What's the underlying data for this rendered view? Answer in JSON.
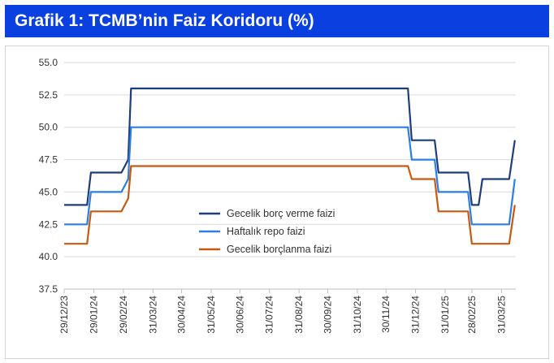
{
  "header": {
    "title": "Grafik 1: TCMB’nin Faiz Koridoru (%)"
  },
  "colors": {
    "header_bg": "#0a3fe0",
    "gridline": "#d9d9d9"
  },
  "chart_data": {
    "type": "line",
    "title": "Grafik 1: TCMB’nin Faiz Koridoru (%)",
    "xlabel": "",
    "ylabel": "",
    "ylim": [
      37.5,
      55.0
    ],
    "y_ticks": [
      37.5,
      40.0,
      42.5,
      45.0,
      47.5,
      50.0,
      52.5,
      55.0
    ],
    "y_tick_labels": [
      "37.5",
      "40.0",
      "42.5",
      "45.0",
      "47.5",
      "50.0",
      "52.5",
      "55.0"
    ],
    "x_range": [
      "2023-12-29",
      "2025-04-15"
    ],
    "x_ticks": [
      "2023-12-29",
      "2024-01-29",
      "2024-02-29",
      "2024-03-31",
      "2024-04-30",
      "2024-05-31",
      "2024-06-30",
      "2024-07-31",
      "2024-08-31",
      "2024-09-30",
      "2024-10-31",
      "2024-11-30",
      "2024-12-31",
      "2025-01-31",
      "2025-02-28",
      "2025-03-31"
    ],
    "x_tick_labels": [
      "29/12/23",
      "29/01/24",
      "29/02/24",
      "31/03/24",
      "30/04/24",
      "31/05/24",
      "30/06/24",
      "31/07/24",
      "31/08/24",
      "30/09/24",
      "31/10/24",
      "30/11/24",
      "31/12/24",
      "31/01/25",
      "28/02/25",
      "31/03/25"
    ],
    "grid": "horizontal",
    "legend_position": "center-left",
    "series": [
      {
        "name": "Gecelik borç verme faizi",
        "color": "#1f3d7a",
        "points": [
          [
            "2023-12-29",
            44.0
          ],
          [
            "2024-01-22",
            44.0
          ],
          [
            "2024-01-26",
            46.5
          ],
          [
            "2024-02-22",
            46.5
          ],
          [
            "2024-02-27",
            46.5
          ],
          [
            "2024-03-05",
            47.5
          ],
          [
            "2024-03-08",
            53.0
          ],
          [
            "2024-12-23",
            53.0
          ],
          [
            "2024-12-27",
            49.0
          ],
          [
            "2025-01-20",
            49.0
          ],
          [
            "2025-01-24",
            46.5
          ],
          [
            "2025-02-24",
            46.5
          ],
          [
            "2025-02-28",
            44.0
          ],
          [
            "2025-03-07",
            44.0
          ],
          [
            "2025-03-11",
            46.0
          ],
          [
            "2025-04-08",
            46.0
          ],
          [
            "2025-04-14",
            49.0
          ]
        ]
      },
      {
        "name": "Haftalık repo faizi",
        "color": "#2b7fe0",
        "points": [
          [
            "2023-12-29",
            42.5
          ],
          [
            "2024-01-22",
            42.5
          ],
          [
            "2024-01-26",
            45.0
          ],
          [
            "2024-02-22",
            45.0
          ],
          [
            "2024-02-27",
            45.0
          ],
          [
            "2024-03-05",
            46.0
          ],
          [
            "2024-03-08",
            50.0
          ],
          [
            "2024-12-23",
            50.0
          ],
          [
            "2024-12-27",
            47.5
          ],
          [
            "2025-01-20",
            47.5
          ],
          [
            "2025-01-24",
            45.0
          ],
          [
            "2025-02-24",
            45.0
          ],
          [
            "2025-02-28",
            42.5
          ],
          [
            "2025-04-08",
            42.5
          ],
          [
            "2025-04-14",
            46.0
          ]
        ]
      },
      {
        "name": "Gecelik borçlanma faizi",
        "color": "#c55a11",
        "points": [
          [
            "2023-12-29",
            41.0
          ],
          [
            "2024-01-22",
            41.0
          ],
          [
            "2024-01-26",
            43.5
          ],
          [
            "2024-02-22",
            43.5
          ],
          [
            "2024-02-27",
            43.5
          ],
          [
            "2024-03-05",
            44.5
          ],
          [
            "2024-03-08",
            47.0
          ],
          [
            "2024-12-23",
            47.0
          ],
          [
            "2024-12-27",
            46.0
          ],
          [
            "2025-01-20",
            46.0
          ],
          [
            "2025-01-24",
            43.5
          ],
          [
            "2025-02-24",
            43.5
          ],
          [
            "2025-02-28",
            41.0
          ],
          [
            "2025-04-08",
            41.0
          ],
          [
            "2025-04-14",
            44.0
          ]
        ]
      }
    ]
  }
}
